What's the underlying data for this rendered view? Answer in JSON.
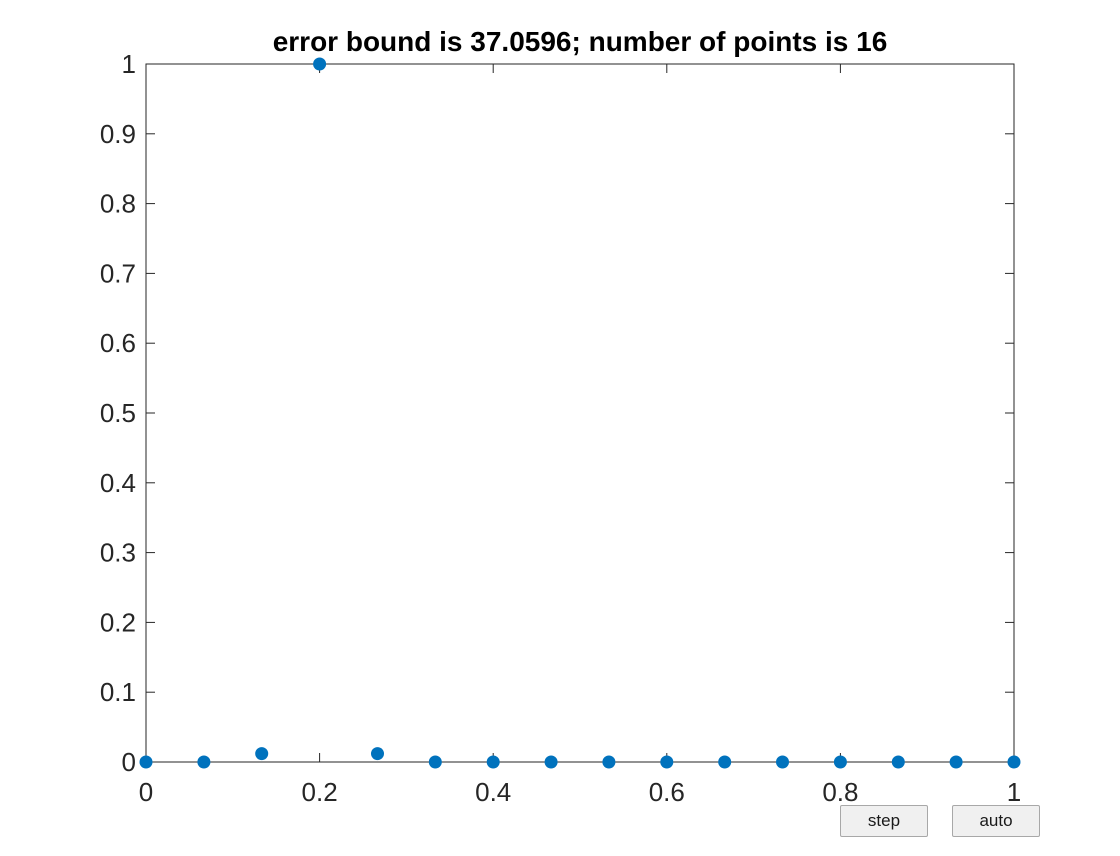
{
  "chart_data": {
    "type": "scatter",
    "title": "error bound is 37.0596; number of points is 16",
    "xlim": [
      0,
      1
    ],
    "ylim": [
      0,
      1
    ],
    "x_ticks": [
      "0",
      "0.2",
      "0.4",
      "0.6",
      "0.8",
      "1"
    ],
    "y_ticks": [
      "0",
      "0.1",
      "0.2",
      "0.3",
      "0.4",
      "0.5",
      "0.6",
      "0.7",
      "0.8",
      "0.9",
      "1"
    ],
    "grid": false,
    "series": [
      {
        "color": "#0072BD",
        "points": [
          {
            "x": 0.0,
            "y": 0.0
          },
          {
            "x": 0.0667,
            "y": 0.0
          },
          {
            "x": 0.1333,
            "y": 0.012
          },
          {
            "x": 0.2,
            "y": 1.0
          },
          {
            "x": 0.2667,
            "y": 0.012
          },
          {
            "x": 0.3333,
            "y": 0.0
          },
          {
            "x": 0.4,
            "y": 0.0
          },
          {
            "x": 0.4667,
            "y": 0.0
          },
          {
            "x": 0.5333,
            "y": 0.0
          },
          {
            "x": 0.6,
            "y": 0.0
          },
          {
            "x": 0.6667,
            "y": 0.0
          },
          {
            "x": 0.7333,
            "y": 0.0
          },
          {
            "x": 0.8,
            "y": 0.0
          },
          {
            "x": 0.8667,
            "y": 0.0
          },
          {
            "x": 0.9333,
            "y": 0.0
          },
          {
            "x": 1.0,
            "y": 0.0
          }
        ]
      }
    ]
  },
  "controls": {
    "step_label": "step",
    "auto_label": "auto"
  }
}
